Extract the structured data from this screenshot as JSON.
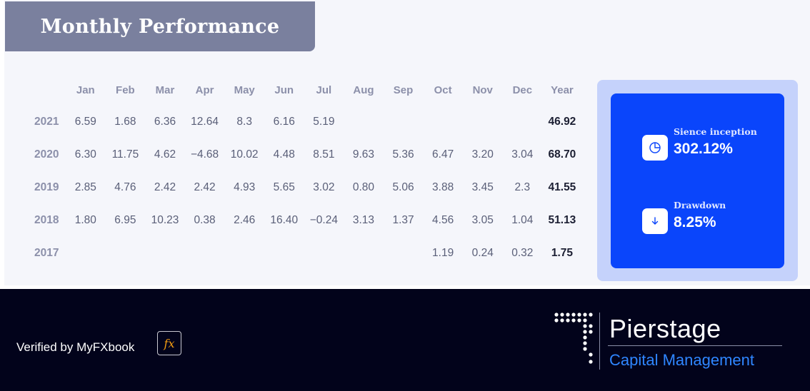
{
  "title": "Monthly Performance",
  "columns": [
    "Jan",
    "Feb",
    "Mar",
    "Apr",
    "May",
    "Jun",
    "Jul",
    "Aug",
    "Sep",
    "Oct",
    "Nov",
    "Dec",
    "Year"
  ],
  "rows": [
    {
      "year": "2021",
      "values": [
        "6.59",
        "1.68",
        "6.36",
        "12.64",
        "8.3",
        "6.16",
        "5.19",
        "",
        "",
        "",
        "",
        "",
        "46.92"
      ]
    },
    {
      "year": "2020",
      "values": [
        "6.30",
        "11.75",
        "4.62",
        "−4.68",
        "10.02",
        "4.48",
        "8.51",
        "9.63",
        "5.36",
        "6.47",
        "3.20",
        "3.04",
        "68.70"
      ]
    },
    {
      "year": "2019",
      "values": [
        "2.85",
        "4.76",
        "2.42",
        "2.42",
        "4.93",
        "5.65",
        "3.02",
        "0.80",
        "5.06",
        "3.88",
        "3.45",
        "2.3",
        "41.55"
      ]
    },
    {
      "year": "2018",
      "values": [
        "1.80",
        "6.95",
        "10.23",
        "0.38",
        "2.46",
        "16.40",
        "−0.24",
        "3.13",
        "1.37",
        "4.56",
        "3.05",
        "1.04",
        "51.13"
      ]
    },
    {
      "year": "2017",
      "values": [
        "",
        "",
        "",
        "",
        "",
        "",
        "",
        "",
        "",
        "1.19",
        "0.24",
        "0.32",
        "1.75"
      ]
    }
  ],
  "stats": {
    "inception": {
      "label": "Sience inception",
      "value": "302.12%",
      "icon": "pie-chart-icon"
    },
    "drawdown": {
      "label": "Drawdown",
      "value": "8.25%",
      "icon": "arrow-down-icon"
    }
  },
  "footer": {
    "verified_text": "Verified by MyFXbook",
    "fx_badge": "fx",
    "brand_name": "Pierstage",
    "brand_sub": "Capital Management"
  },
  "colors": {
    "accent_blue": "#0a45fb",
    "title_tab": "#7a809e",
    "footer_bg": "#02031b",
    "brand_blue": "#2f86ff"
  }
}
